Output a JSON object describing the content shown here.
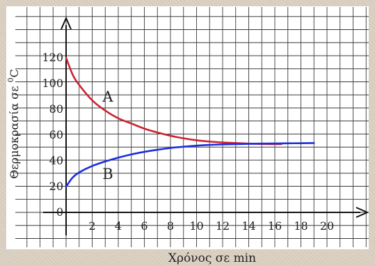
{
  "chart_data": {
    "type": "line",
    "xlabel": "Χρόνος σε min",
    "ylabel": "Θερμοκρασία σε °C",
    "ylabel_parts": {
      "main": "Θερμοκρασία σε ",
      "sup": "0",
      "unit": "C"
    },
    "xlim": [
      0,
      22
    ],
    "ylim": [
      0,
      145
    ],
    "x_ticks": [
      2,
      4,
      6,
      8,
      10,
      12,
      14,
      16,
      18,
      20
    ],
    "y_ticks": [
      0,
      20,
      40,
      60,
      80,
      100,
      120
    ],
    "grid": true,
    "series": [
      {
        "name": "A",
        "color": "#cc2233",
        "x": [
          0,
          0.5,
          1,
          2,
          3,
          4,
          5,
          6,
          7,
          8,
          9,
          10,
          11,
          12,
          13,
          14,
          15,
          16,
          16.5
        ],
        "y": [
          120,
          107,
          99,
          87,
          79,
          73,
          69,
          65,
          62,
          59.5,
          57.5,
          56,
          55,
          54.3,
          53.8,
          53.4,
          53.1,
          53,
          53
        ]
      },
      {
        "name": "B",
        "color": "#1a2ee0",
        "x": [
          0,
          0.5,
          1,
          2,
          3,
          4,
          5,
          6,
          7,
          8,
          9,
          10,
          11,
          12,
          13,
          14,
          15,
          16,
          17,
          18,
          19
        ],
        "y": [
          20,
          27,
          31,
          36,
          39.5,
          42.5,
          45,
          47,
          48.6,
          50,
          51,
          51.8,
          52.4,
          52.8,
          53,
          53.2,
          53.4,
          53.5,
          53.6,
          53.7,
          53.8
        ]
      }
    ]
  }
}
